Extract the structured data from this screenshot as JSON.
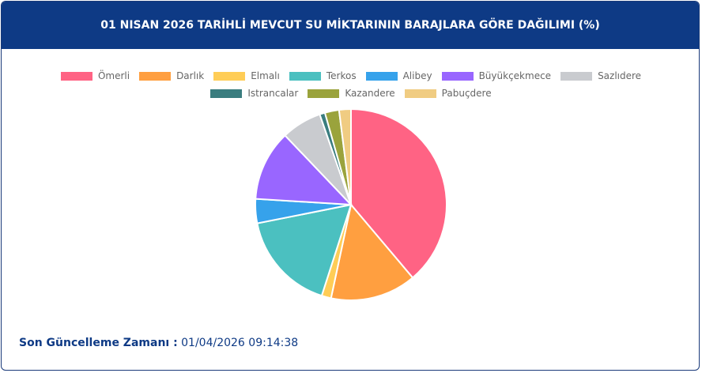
{
  "chart_data": {
    "type": "pie",
    "title": "01 NISAN 2026 TARİHLİ MEVCUT SU MİKTARININ BARAJLARA GÖRE DAĞILIMI (%)",
    "categories": [
      "Ömerli",
      "Darlık",
      "Elmalı",
      "Terkos",
      "Alibey",
      "Büyükçekmece",
      "Sazlıdere",
      "Istrancalar",
      "Kazandere",
      "Pabuçdere"
    ],
    "values": [
      38.8,
      14.5,
      1.6,
      16.9,
      4.1,
      11.9,
      6.8,
      0.9,
      2.4,
      2.0
    ],
    "colors": [
      "#ff6384",
      "#ff9f40",
      "#ffcd56",
      "#4bc0c0",
      "#36a2eb",
      "#9966ff",
      "#c9cbcf",
      "#3a7d7f",
      "#9aa33c",
      "#f0cc82"
    ],
    "legend": "top",
    "footer_label": "Son Güncelleme Zamanı :",
    "footer_value": "01/04/2026 09:14:38"
  }
}
